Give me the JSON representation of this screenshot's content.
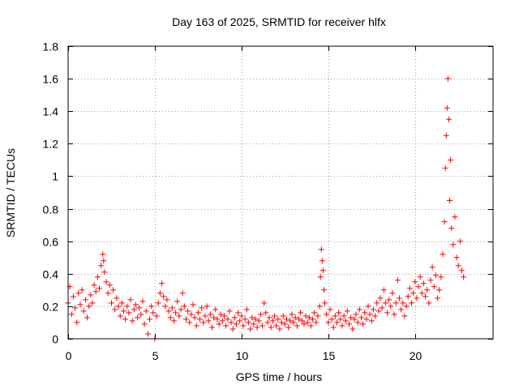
{
  "chart_data": {
    "type": "scatter",
    "title": "Day 163 of 2025, SRMTID for receiver hlfx",
    "xlabel": "GPS time / hours",
    "ylabel": "SRMTID / TECUs",
    "xlim": [
      0,
      24.5
    ],
    "ylim": [
      0,
      1.8
    ],
    "xticks": [
      0,
      5,
      10,
      15,
      20
    ],
    "xtick_labels": [
      "0",
      "5",
      "10",
      "15",
      "20"
    ],
    "yticks": [
      0,
      0.2,
      0.4,
      0.6,
      0.8,
      1.0,
      1.2,
      1.4,
      1.6,
      1.8
    ],
    "ytick_labels": [
      "0",
      "0.2",
      "0.4",
      "0.6",
      "0.8",
      "1",
      "1.2",
      "1.4",
      "1.6",
      "1.8"
    ],
    "grid": true,
    "marker": "+",
    "color": "#ff0000",
    "series": [
      {
        "name": "SRMTID",
        "points": [
          [
            0.0,
            0.22
          ],
          [
            0.1,
            0.32
          ],
          [
            0.2,
            0.15
          ],
          [
            0.3,
            0.26
          ],
          [
            0.4,
            0.19
          ],
          [
            0.5,
            0.1
          ],
          [
            0.6,
            0.28
          ],
          [
            0.7,
            0.21
          ],
          [
            0.8,
            0.3
          ],
          [
            0.9,
            0.17
          ],
          [
            1.0,
            0.24
          ],
          [
            1.1,
            0.13
          ],
          [
            1.2,
            0.2
          ],
          [
            1.3,
            0.27
          ],
          [
            1.4,
            0.22
          ],
          [
            1.5,
            0.33
          ],
          [
            1.6,
            0.29
          ],
          [
            1.7,
            0.38
          ],
          [
            1.8,
            0.31
          ],
          [
            1.9,
            0.45
          ],
          [
            2.0,
            0.52
          ],
          [
            2.05,
            0.48
          ],
          [
            2.1,
            0.41
          ],
          [
            2.2,
            0.35
          ],
          [
            2.3,
            0.28
          ],
          [
            2.4,
            0.33
          ],
          [
            2.5,
            0.22
          ],
          [
            2.6,
            0.3
          ],
          [
            2.7,
            0.18
          ],
          [
            2.8,
            0.25
          ],
          [
            2.9,
            0.2
          ],
          [
            3.0,
            0.14
          ],
          [
            3.1,
            0.22
          ],
          [
            3.2,
            0.17
          ],
          [
            3.3,
            0.12
          ],
          [
            3.4,
            0.2
          ],
          [
            3.5,
            0.16
          ],
          [
            3.6,
            0.24
          ],
          [
            3.7,
            0.11
          ],
          [
            3.8,
            0.18
          ],
          [
            3.9,
            0.21
          ],
          [
            4.0,
            0.13
          ],
          [
            4.1,
            0.19
          ],
          [
            4.2,
            0.15
          ],
          [
            4.3,
            0.23
          ],
          [
            4.4,
            0.09
          ],
          [
            4.5,
            0.17
          ],
          [
            4.6,
            0.03
          ],
          [
            4.7,
            0.12
          ],
          [
            4.8,
            0.2
          ],
          [
            4.9,
            0.16
          ],
          [
            5.0,
            0.0
          ],
          [
            5.1,
            0.14
          ],
          [
            5.2,
            0.22
          ],
          [
            5.3,
            0.28
          ],
          [
            5.4,
            0.34
          ],
          [
            5.5,
            0.26
          ],
          [
            5.6,
            0.2
          ],
          [
            5.7,
            0.24
          ],
          [
            5.8,
            0.17
          ],
          [
            5.9,
            0.13
          ],
          [
            6.0,
            0.19
          ],
          [
            6.1,
            0.11
          ],
          [
            6.2,
            0.16
          ],
          [
            6.3,
            0.23
          ],
          [
            6.4,
            0.14
          ],
          [
            6.5,
            0.18
          ],
          [
            6.6,
            0.28
          ],
          [
            6.7,
            0.2
          ],
          [
            6.8,
            0.12
          ],
          [
            6.9,
            0.17
          ],
          [
            7.0,
            0.1
          ],
          [
            7.1,
            0.15
          ],
          [
            7.2,
            0.21
          ],
          [
            7.3,
            0.13
          ],
          [
            7.4,
            0.08
          ],
          [
            7.5,
            0.16
          ],
          [
            7.6,
            0.12
          ],
          [
            7.7,
            0.19
          ],
          [
            7.8,
            0.1
          ],
          [
            7.9,
            0.14
          ],
          [
            8.0,
            0.2
          ],
          [
            8.1,
            0.11
          ],
          [
            8.2,
            0.15
          ],
          [
            8.3,
            0.07
          ],
          [
            8.4,
            0.13
          ],
          [
            8.5,
            0.18
          ],
          [
            8.6,
            0.12
          ],
          [
            8.7,
            0.09
          ],
          [
            8.8,
            0.15
          ],
          [
            8.9,
            0.11
          ],
          [
            9.0,
            0.14
          ],
          [
            9.1,
            0.08
          ],
          [
            9.2,
            0.12
          ],
          [
            9.3,
            0.17
          ],
          [
            9.4,
            0.1
          ],
          [
            9.5,
            0.06
          ],
          [
            9.6,
            0.13
          ],
          [
            9.7,
            0.09
          ],
          [
            9.8,
            0.16
          ],
          [
            9.9,
            0.11
          ],
          [
            10.0,
            0.14
          ],
          [
            10.1,
            0.08
          ],
          [
            10.2,
            0.12
          ],
          [
            10.3,
            0.18
          ],
          [
            10.4,
            0.1
          ],
          [
            10.5,
            0.06
          ],
          [
            10.6,
            0.13
          ],
          [
            10.7,
            0.09
          ],
          [
            10.8,
            0.12
          ],
          [
            10.9,
            0.07
          ],
          [
            11.0,
            0.11
          ],
          [
            11.1,
            0.15
          ],
          [
            11.2,
            0.08
          ],
          [
            11.3,
            0.22
          ],
          [
            11.4,
            0.16
          ],
          [
            11.5,
            0.1
          ],
          [
            11.6,
            0.13
          ],
          [
            11.7,
            0.07
          ],
          [
            11.8,
            0.11
          ],
          [
            11.9,
            0.14
          ],
          [
            12.0,
            0.08
          ],
          [
            12.1,
            0.12
          ],
          [
            12.2,
            0.06
          ],
          [
            12.3,
            0.1
          ],
          [
            12.4,
            0.14
          ],
          [
            12.5,
            0.09
          ],
          [
            12.6,
            0.12
          ],
          [
            12.7,
            0.07
          ],
          [
            12.8,
            0.11
          ],
          [
            12.9,
            0.15
          ],
          [
            13.0,
            0.1
          ],
          [
            13.1,
            0.13
          ],
          [
            13.2,
            0.08
          ],
          [
            13.3,
            0.12
          ],
          [
            13.4,
            0.16
          ],
          [
            13.5,
            0.11
          ],
          [
            13.6,
            0.09
          ],
          [
            13.7,
            0.14
          ],
          [
            13.8,
            0.1
          ],
          [
            13.9,
            0.13
          ],
          [
            14.0,
            0.08
          ],
          [
            14.1,
            0.12
          ],
          [
            14.2,
            0.16
          ],
          [
            14.3,
            0.1
          ],
          [
            14.4,
            0.14
          ],
          [
            14.5,
            0.2
          ],
          [
            14.55,
            0.38
          ],
          [
            14.6,
            0.55
          ],
          [
            14.65,
            0.48
          ],
          [
            14.7,
            0.42
          ],
          [
            14.75,
            0.3
          ],
          [
            14.8,
            0.22
          ],
          [
            14.9,
            0.15
          ],
          [
            15.0,
            0.1
          ],
          [
            15.1,
            0.18
          ],
          [
            15.2,
            0.12
          ],
          [
            15.3,
            0.07
          ],
          [
            15.4,
            0.14
          ],
          [
            15.5,
            0.1
          ],
          [
            15.6,
            0.16
          ],
          [
            15.7,
            0.12
          ],
          [
            15.8,
            0.08
          ],
          [
            15.9,
            0.14
          ],
          [
            16.0,
            0.11
          ],
          [
            16.1,
            0.17
          ],
          [
            16.2,
            0.09
          ],
          [
            16.3,
            0.13
          ],
          [
            16.4,
            0.06
          ],
          [
            16.5,
            0.12
          ],
          [
            16.6,
            0.15
          ],
          [
            16.7,
            0.1
          ],
          [
            16.8,
            0.18
          ],
          [
            16.9,
            0.13
          ],
          [
            17.0,
            0.09
          ],
          [
            17.1,
            0.16
          ],
          [
            17.2,
            0.12
          ],
          [
            17.3,
            0.2
          ],
          [
            17.4,
            0.15
          ],
          [
            17.5,
            0.11
          ],
          [
            17.6,
            0.18
          ],
          [
            17.7,
            0.14
          ],
          [
            17.8,
            0.22
          ],
          [
            17.9,
            0.17
          ],
          [
            18.0,
            0.25
          ],
          [
            18.1,
            0.19
          ],
          [
            18.2,
            0.3
          ],
          [
            18.3,
            0.22
          ],
          [
            18.4,
            0.16
          ],
          [
            18.5,
            0.24
          ],
          [
            18.6,
            0.2
          ],
          [
            18.7,
            0.28
          ],
          [
            18.8,
            0.15
          ],
          [
            18.9,
            0.22
          ],
          [
            19.0,
            0.36
          ],
          [
            19.1,
            0.25
          ],
          [
            19.2,
            0.18
          ],
          [
            19.3,
            0.22
          ],
          [
            19.4,
            0.14
          ],
          [
            19.5,
            0.2
          ],
          [
            19.6,
            0.26
          ],
          [
            19.7,
            0.31
          ],
          [
            19.8,
            0.22
          ],
          [
            19.9,
            0.28
          ],
          [
            20.0,
            0.35
          ],
          [
            20.1,
            0.25
          ],
          [
            20.2,
            0.32
          ],
          [
            20.3,
            0.38
          ],
          [
            20.4,
            0.28
          ],
          [
            20.5,
            0.34
          ],
          [
            20.6,
            0.26
          ],
          [
            20.7,
            0.3
          ],
          [
            20.8,
            0.22
          ],
          [
            20.9,
            0.36
          ],
          [
            21.0,
            0.44
          ],
          [
            21.1,
            0.32
          ],
          [
            21.2,
            0.39
          ],
          [
            21.3,
            0.25
          ],
          [
            21.4,
            0.3
          ],
          [
            21.5,
            0.38
          ],
          [
            21.6,
            0.52
          ],
          [
            21.7,
            0.72
          ],
          [
            21.75,
            1.05
          ],
          [
            21.8,
            1.25
          ],
          [
            21.85,
            1.42
          ],
          [
            21.9,
            1.6
          ],
          [
            21.95,
            1.35
          ],
          [
            22.0,
            0.85
          ],
          [
            22.05,
            1.1
          ],
          [
            22.1,
            0.68
          ],
          [
            22.2,
            0.58
          ],
          [
            22.3,
            0.75
          ],
          [
            22.4,
            0.5
          ],
          [
            22.5,
            0.45
          ],
          [
            22.6,
            0.6
          ],
          [
            22.7,
            0.42
          ],
          [
            22.8,
            0.38
          ]
        ]
      }
    ]
  }
}
